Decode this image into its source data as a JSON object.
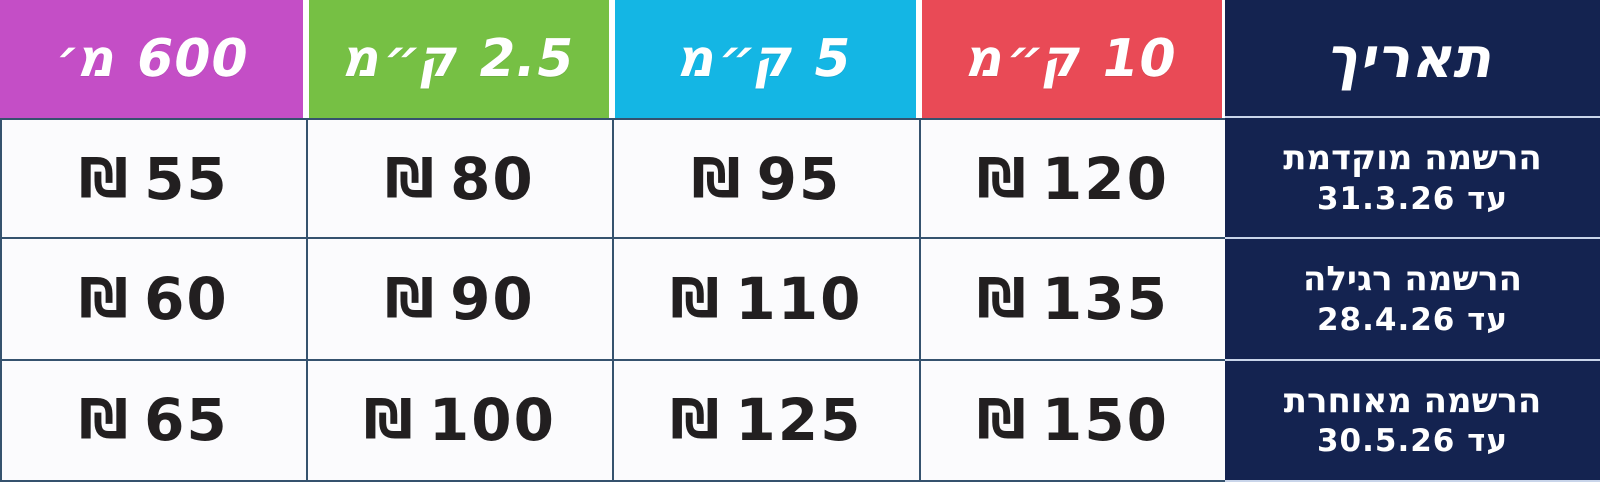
{
  "table": {
    "date_column_header": "תאריך",
    "currency_symbol": "₪",
    "columns": [
      {
        "id": "10km",
        "label": "10 ק״מ",
        "color": "#e94a56"
      },
      {
        "id": "5km",
        "label": "5 ק״מ",
        "color": "#14b6e4"
      },
      {
        "id": "2_5km",
        "label": "2.5 ק״מ",
        "color": "#76c044"
      },
      {
        "id": "600m",
        "label": "600 מ׳",
        "color": "#c44ec6"
      }
    ],
    "rows": [
      {
        "period": "הרשמה מוקדמת",
        "deadline": "עד 31.3.26",
        "prices": [
          "120",
          "95",
          "80",
          "55"
        ]
      },
      {
        "period": "הרשמה רגילה",
        "deadline": "עד 28.4.26",
        "prices": [
          "135",
          "110",
          "90",
          "60"
        ]
      },
      {
        "period": "הרשמה מאוחרת",
        "deadline": "עד 30.5.26",
        "prices": [
          "150",
          "125",
          "100",
          "65"
        ]
      }
    ],
    "colors": {
      "navy": "#142350",
      "grid_border": "#35526e",
      "light_separator": "#c9d5ea",
      "cell_background": "#fbfbfd",
      "price_text": "#221f20"
    }
  },
  "chart_data": {
    "type": "table",
    "direction": "rtl",
    "column_headers": [
      "תאריך",
      "10 ק״מ",
      "5 ק״מ",
      "2.5 ק״מ",
      "600 מ׳"
    ],
    "currency": "₪",
    "rows": [
      {
        "date": "הרשמה מוקדמת עד 31.3.26",
        "10km": 120,
        "5km": 95,
        "2.5km": 80,
        "600m": 55
      },
      {
        "date": "הרשמה רגילה עד 28.4.26",
        "10km": 135,
        "5km": 110,
        "2.5km": 90,
        "600m": 60
      },
      {
        "date": "הרשמה מאוחרת עד 30.5.26",
        "10km": 150,
        "5km": 125,
        "2.5km": 100,
        "600m": 65
      }
    ]
  }
}
